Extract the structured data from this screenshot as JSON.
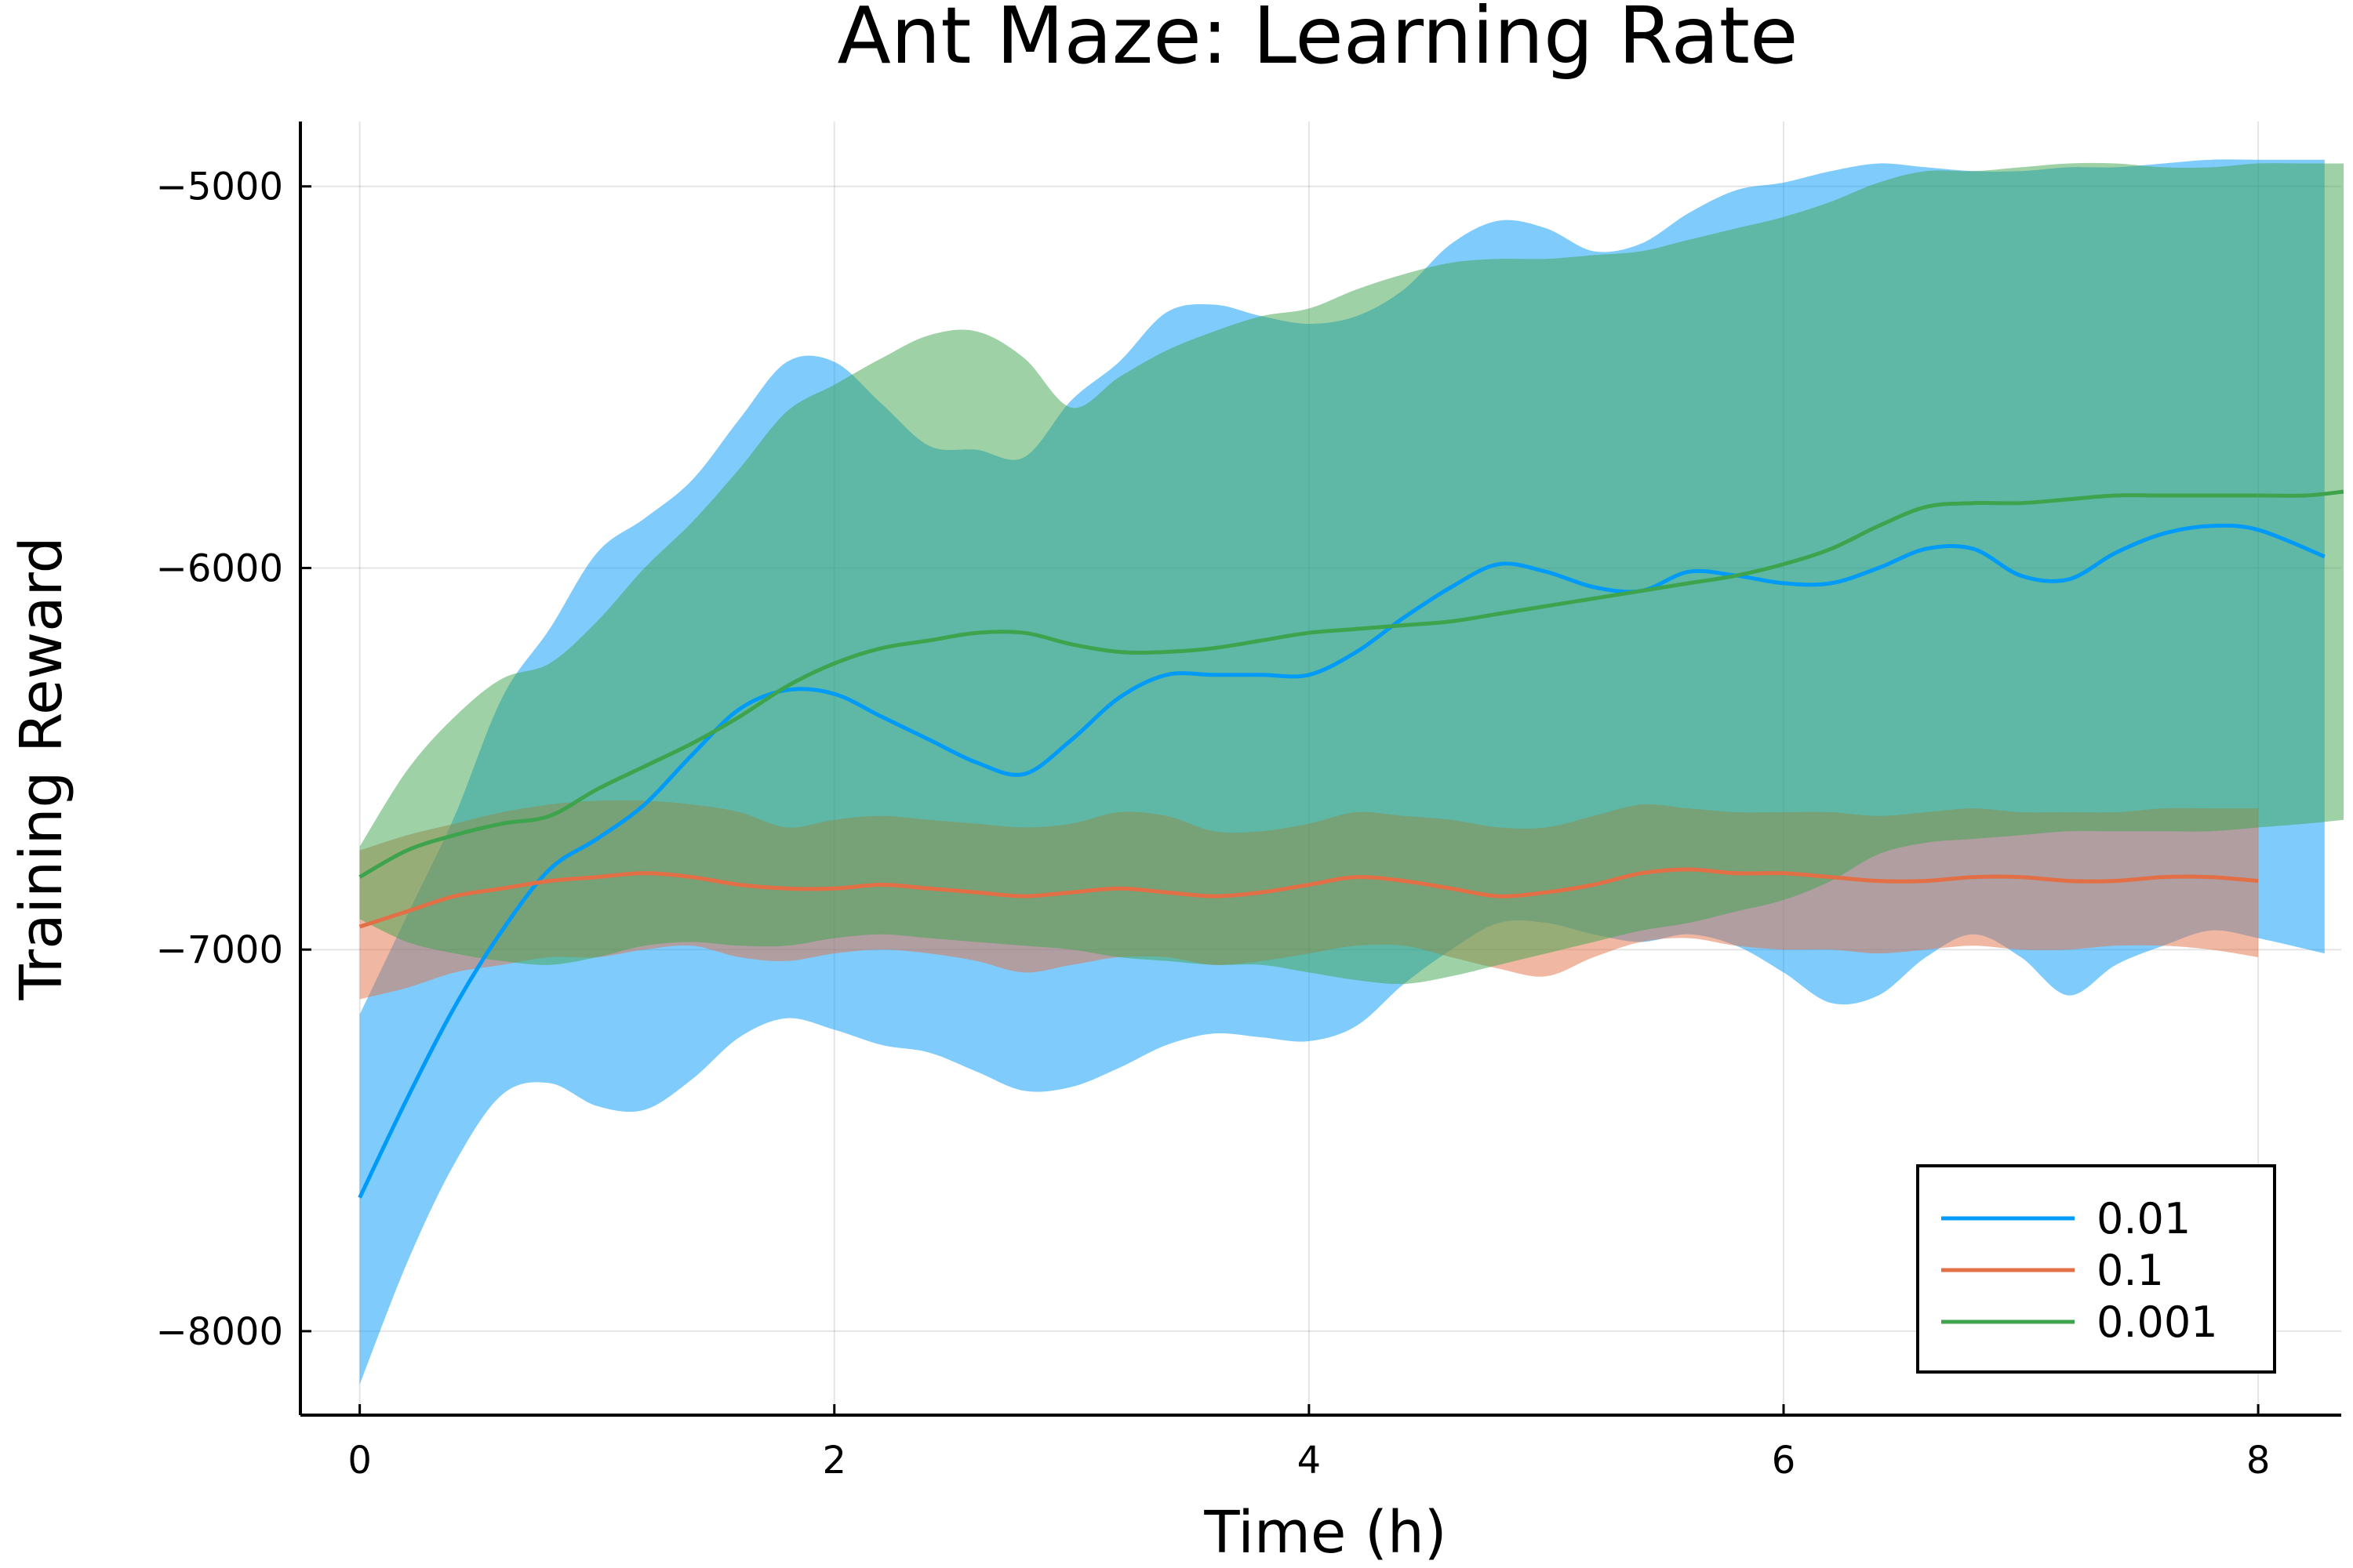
{
  "chart_data": {
    "type": "line",
    "title": "Ant Maze: Learning Rate",
    "xlabel": "Time (h)",
    "ylabel": "Training Reward",
    "xlim": [
      -0.25,
      8.35
    ],
    "ylim": [
      -8220,
      -4830
    ],
    "xticks": [
      0,
      2,
      4,
      6,
      8
    ],
    "xtick_labels": [
      "0",
      "2",
      "4",
      "6",
      "8"
    ],
    "yticks": [
      -8000,
      -7000,
      -6000,
      -5000
    ],
    "ytick_labels": [
      "−8000",
      "−7000",
      "−6000",
      "−5000"
    ],
    "grid": true,
    "legend_position": "bottom-right",
    "series": [
      {
        "name": "0.01",
        "color": "#009af9",
        "x": [
          0,
          0.2,
          0.4,
          0.6,
          0.8,
          1.0,
          1.2,
          1.4,
          1.6,
          1.8,
          2.0,
          2.2,
          2.4,
          2.6,
          2.8,
          3.0,
          3.2,
          3.4,
          3.6,
          3.8,
          4.0,
          4.2,
          4.4,
          4.6,
          4.8,
          5.0,
          5.2,
          5.4,
          5.6,
          5.8,
          6.0,
          6.2,
          6.4,
          6.6,
          6.8,
          7.0,
          7.2,
          7.4,
          7.6,
          7.8,
          8.0,
          8.28
        ],
        "mean": [
          -7650,
          -7390,
          -7150,
          -6950,
          -6790,
          -6710,
          -6620,
          -6490,
          -6370,
          -6320,
          -6330,
          -6390,
          -6450,
          -6510,
          -6540,
          -6450,
          -6340,
          -6280,
          -6280,
          -6280,
          -6280,
          -6220,
          -6130,
          -6050,
          -5990,
          -6010,
          -6050,
          -6060,
          -6010,
          -6020,
          -6040,
          -6040,
          -6000,
          -5950,
          -5950,
          -6020,
          -6030,
          -5960,
          -5910,
          -5890,
          -5900,
          -5970
        ],
        "upper": [
          -7170,
          -6910,
          -6650,
          -6340,
          -6160,
          -5960,
          -5870,
          -5770,
          -5610,
          -5460,
          -5460,
          -5570,
          -5680,
          -5690,
          -5710,
          -5560,
          -5460,
          -5330,
          -5310,
          -5340,
          -5360,
          -5340,
          -5270,
          -5150,
          -5090,
          -5110,
          -5170,
          -5150,
          -5070,
          -5010,
          -4990,
          -4960,
          -4940,
          -4950,
          -4960,
          -4960,
          -4950,
          -4950,
          -4940,
          -4930,
          -4930,
          -4930
        ],
        "lower": [
          -8140,
          -7820,
          -7560,
          -7380,
          -7350,
          -7410,
          -7420,
          -7340,
          -7230,
          -7180,
          -7210,
          -7250,
          -7270,
          -7320,
          -7370,
          -7360,
          -7310,
          -7250,
          -7220,
          -7230,
          -7240,
          -7200,
          -7090,
          -7000,
          -6930,
          -6930,
          -6960,
          -6980,
          -6960,
          -6990,
          -7060,
          -7140,
          -7120,
          -7020,
          -6960,
          -7020,
          -7120,
          -7040,
          -6990,
          -6950,
          -6970,
          -7010
        ]
      },
      {
        "name": "0.1",
        "color": "#e26f46",
        "x": [
          0,
          0.2,
          0.4,
          0.6,
          0.8,
          1.0,
          1.2,
          1.4,
          1.6,
          1.8,
          2.0,
          2.2,
          2.4,
          2.6,
          2.8,
          3.0,
          3.2,
          3.4,
          3.6,
          3.8,
          4.0,
          4.2,
          4.4,
          4.6,
          4.8,
          5.0,
          5.2,
          5.4,
          5.6,
          5.8,
          6.0,
          6.2,
          6.4,
          6.6,
          6.8,
          7.0,
          7.2,
          7.4,
          7.6,
          7.8,
          8.0
        ],
        "mean": [
          -6940,
          -6900,
          -6860,
          -6840,
          -6820,
          -6810,
          -6800,
          -6810,
          -6830,
          -6840,
          -6840,
          -6830,
          -6840,
          -6850,
          -6860,
          -6850,
          -6840,
          -6850,
          -6860,
          -6850,
          -6830,
          -6810,
          -6820,
          -6840,
          -6860,
          -6850,
          -6830,
          -6800,
          -6790,
          -6800,
          -6800,
          -6810,
          -6820,
          -6820,
          -6810,
          -6810,
          -6820,
          -6820,
          -6810,
          -6810,
          -6820
        ],
        "upper": [
          -6740,
          -6700,
          -6670,
          -6640,
          -6620,
          -6610,
          -6610,
          -6620,
          -6640,
          -6680,
          -6660,
          -6650,
          -6660,
          -6670,
          -6680,
          -6670,
          -6640,
          -6650,
          -6690,
          -6690,
          -6670,
          -6640,
          -6650,
          -6660,
          -6680,
          -6680,
          -6650,
          -6620,
          -6630,
          -6640,
          -6640,
          -6640,
          -6650,
          -6640,
          -6630,
          -6640,
          -6640,
          -6640,
          -6630,
          -6630,
          -6630
        ],
        "lower": [
          -7130,
          -7100,
          -7060,
          -7040,
          -7020,
          -7020,
          -7000,
          -6990,
          -7020,
          -7030,
          -7010,
          -7000,
          -7010,
          -7030,
          -7060,
          -7040,
          -7020,
          -7020,
          -7040,
          -7030,
          -7010,
          -6990,
          -6990,
          -7020,
          -7050,
          -7070,
          -7020,
          -6980,
          -6970,
          -6990,
          -7000,
          -7000,
          -7010,
          -7000,
          -6990,
          -7000,
          -7000,
          -6990,
          -6990,
          -7000,
          -7020
        ]
      },
      {
        "name": "0.001",
        "color": "#3da44d",
        "x": [
          0,
          0.2,
          0.4,
          0.6,
          0.8,
          1.0,
          1.2,
          1.4,
          1.6,
          1.8,
          2.0,
          2.2,
          2.4,
          2.6,
          2.8,
          3.0,
          3.2,
          3.4,
          3.6,
          3.8,
          4.0,
          4.2,
          4.4,
          4.6,
          4.8,
          5.0,
          5.2,
          5.4,
          5.6,
          5.8,
          6.0,
          6.2,
          6.4,
          6.6,
          6.8,
          7.0,
          7.2,
          7.4,
          7.6,
          7.8,
          8.0,
          8.2,
          8.36
        ],
        "mean": [
          -6810,
          -6740,
          -6700,
          -6670,
          -6650,
          -6580,
          -6520,
          -6460,
          -6390,
          -6310,
          -6250,
          -6210,
          -6190,
          -6170,
          -6170,
          -6200,
          -6220,
          -6220,
          -6210,
          -6190,
          -6170,
          -6160,
          -6150,
          -6140,
          -6120,
          -6100,
          -6080,
          -6060,
          -6040,
          -6020,
          -5990,
          -5950,
          -5890,
          -5840,
          -5830,
          -5830,
          -5820,
          -5810,
          -5810,
          -5810,
          -5810,
          -5810,
          -5800
        ],
        "upper": [
          -6730,
          -6530,
          -6390,
          -6290,
          -6250,
          -6140,
          -6000,
          -5880,
          -5740,
          -5590,
          -5520,
          -5450,
          -5390,
          -5380,
          -5450,
          -5580,
          -5500,
          -5430,
          -5380,
          -5340,
          -5320,
          -5270,
          -5230,
          -5200,
          -5190,
          -5190,
          -5180,
          -5170,
          -5140,
          -5110,
          -5080,
          -5040,
          -4990,
          -4960,
          -4960,
          -4950,
          -4940,
          -4940,
          -4950,
          -4950,
          -4940,
          -4940,
          -4940
        ],
        "lower": [
          -6920,
          -6980,
          -7010,
          -7030,
          -7040,
          -7020,
          -6990,
          -6980,
          -6990,
          -6990,
          -6970,
          -6960,
          -6970,
          -6980,
          -6990,
          -7000,
          -7020,
          -7030,
          -7040,
          -7040,
          -7060,
          -7080,
          -7090,
          -7070,
          -7040,
          -7010,
          -6980,
          -6950,
          -6930,
          -6900,
          -6870,
          -6820,
          -6750,
          -6720,
          -6710,
          -6700,
          -6690,
          -6690,
          -6690,
          -6690,
          -6680,
          -6670,
          -6660
        ]
      }
    ]
  }
}
